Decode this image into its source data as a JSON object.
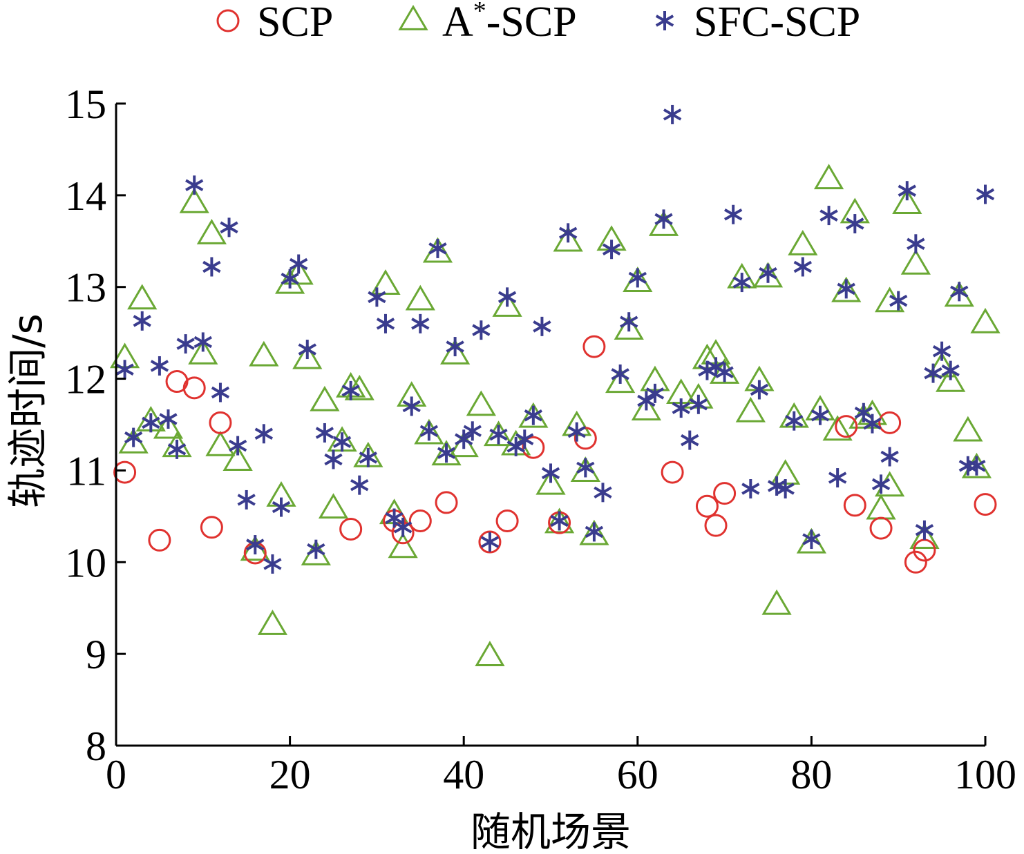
{
  "chart_data": {
    "type": "scatter",
    "title": "",
    "xlabel": "随机场景",
    "ylabel": "轨迹时间/s",
    "xlim": [
      0,
      100
    ],
    "ylim": [
      8,
      15
    ],
    "xticks": [
      "0",
      "20",
      "40",
      "60",
      "80",
      "100"
    ],
    "yticks": [
      "8",
      "9",
      "10",
      "11",
      "12",
      "13",
      "14",
      "15"
    ],
    "grid": false,
    "legend_position": "top",
    "series": [
      {
        "name": "SCP",
        "sup": "",
        "suffix": "",
        "marker": "circle",
        "color": "#e0322f",
        "points": [
          [
            1,
            10.98
          ],
          [
            5,
            10.24
          ],
          [
            7,
            11.97
          ],
          [
            9,
            11.9
          ],
          [
            11,
            10.38
          ],
          [
            12,
            11.52
          ],
          [
            16,
            10.1
          ],
          [
            27,
            10.36
          ],
          [
            32,
            10.45
          ],
          [
            33,
            10.32
          ],
          [
            35,
            10.45
          ],
          [
            38,
            10.65
          ],
          [
            43,
            10.22
          ],
          [
            45,
            10.45
          ],
          [
            48,
            11.25
          ],
          [
            51,
            10.43
          ],
          [
            54,
            11.35
          ],
          [
            55,
            12.35
          ],
          [
            64,
            10.98
          ],
          [
            68,
            10.61
          ],
          [
            69,
            10.4
          ],
          [
            70,
            10.75
          ],
          [
            84,
            11.48
          ],
          [
            85,
            10.62
          ],
          [
            88,
            10.37
          ],
          [
            89,
            11.52
          ],
          [
            92,
            10.0
          ],
          [
            93,
            10.13
          ],
          [
            100,
            10.63
          ]
        ]
      },
      {
        "name": "A",
        "sup": "*",
        "suffix": "-SCP",
        "marker": "triangle",
        "color": "#6aa834",
        "points": [
          [
            1,
            12.22
          ],
          [
            2,
            11.29
          ],
          [
            3,
            12.86
          ],
          [
            4,
            11.53
          ],
          [
            6,
            11.45
          ],
          [
            7,
            11.25
          ],
          [
            9,
            13.91
          ],
          [
            10,
            12.26
          ],
          [
            11,
            13.57
          ],
          [
            12,
            11.26
          ],
          [
            14,
            11.1
          ],
          [
            16,
            10.12
          ],
          [
            17,
            12.24
          ],
          [
            18,
            9.31
          ],
          [
            19,
            10.71
          ],
          [
            20,
            13.03
          ],
          [
            21,
            13.13
          ],
          [
            22,
            12.21
          ],
          [
            23,
            10.07
          ],
          [
            24,
            11.75
          ],
          [
            25,
            10.58
          ],
          [
            26,
            11.31
          ],
          [
            27,
            11.9
          ],
          [
            28,
            11.87
          ],
          [
            29,
            11.14
          ],
          [
            31,
            13.02
          ],
          [
            32,
            10.52
          ],
          [
            33,
            10.15
          ],
          [
            34,
            11.8
          ],
          [
            35,
            12.85
          ],
          [
            36,
            11.39
          ],
          [
            37,
            13.37
          ],
          [
            38,
            11.16
          ],
          [
            39,
            12.26
          ],
          [
            40,
            11.25
          ],
          [
            42,
            11.7
          ],
          [
            43,
            8.97
          ],
          [
            44,
            11.37
          ],
          [
            45,
            12.78
          ],
          [
            46,
            11.27
          ],
          [
            48,
            11.57
          ],
          [
            50,
            10.84
          ],
          [
            51,
            10.42
          ],
          [
            52,
            13.49
          ],
          [
            53,
            11.48
          ],
          [
            54,
            10.98
          ],
          [
            55,
            10.29
          ],
          [
            57,
            13.5
          ],
          [
            58,
            11.95
          ],
          [
            59,
            12.53
          ],
          [
            60,
            13.05
          ],
          [
            61,
            11.65
          ],
          [
            62,
            11.97
          ],
          [
            63,
            13.66
          ],
          [
            65,
            11.83
          ],
          [
            67,
            11.78
          ],
          [
            68,
            12.21
          ],
          [
            69,
            12.26
          ],
          [
            70,
            12.05
          ],
          [
            72,
            13.09
          ],
          [
            73,
            11.63
          ],
          [
            74,
            11.97
          ],
          [
            75,
            13.1
          ],
          [
            76,
            9.53
          ],
          [
            77,
            10.95
          ],
          [
            78,
            11.57
          ],
          [
            79,
            13.45
          ],
          [
            80,
            10.2
          ],
          [
            81,
            11.65
          ],
          [
            82,
            14.17
          ],
          [
            83,
            11.43
          ],
          [
            84,
            12.94
          ],
          [
            85,
            13.8
          ],
          [
            86,
            11.56
          ],
          [
            87,
            11.6
          ],
          [
            88,
            10.57
          ],
          [
            89,
            10.82
          ],
          [
            89,
            12.83
          ],
          [
            91,
            13.9
          ],
          [
            92,
            13.24
          ],
          [
            93,
            10.25
          ],
          [
            95,
            12.12
          ],
          [
            96,
            11.96
          ],
          [
            97,
            12.89
          ],
          [
            98,
            11.42
          ],
          [
            99,
            11.02
          ],
          [
            100,
            12.6
          ]
        ]
      },
      {
        "name": "SFC-SCP",
        "sup": "",
        "suffix": "",
        "marker": "asterisk",
        "color": "#3a3c8e",
        "points": [
          [
            1,
            12.1
          ],
          [
            2,
            11.36
          ],
          [
            3,
            12.63
          ],
          [
            4,
            11.52
          ],
          [
            5,
            12.14
          ],
          [
            6,
            11.56
          ],
          [
            7,
            11.23
          ],
          [
            8,
            12.38
          ],
          [
            9,
            14.11
          ],
          [
            10,
            12.4
          ],
          [
            11,
            13.22
          ],
          [
            12,
            11.85
          ],
          [
            13,
            13.65
          ],
          [
            14,
            11.27
          ],
          [
            15,
            10.68
          ],
          [
            16,
            10.19
          ],
          [
            17,
            11.4
          ],
          [
            18,
            9.98
          ],
          [
            19,
            10.6
          ],
          [
            20,
            13.09
          ],
          [
            21,
            13.25
          ],
          [
            22,
            12.32
          ],
          [
            23,
            10.14
          ],
          [
            24,
            11.41
          ],
          [
            25,
            11.12
          ],
          [
            26,
            11.31
          ],
          [
            27,
            11.87
          ],
          [
            28,
            10.84
          ],
          [
            29,
            11.14
          ],
          [
            30,
            12.89
          ],
          [
            31,
            12.6
          ],
          [
            32,
            10.48
          ],
          [
            33,
            10.38
          ],
          [
            34,
            11.7
          ],
          [
            35,
            12.6
          ],
          [
            36,
            11.43
          ],
          [
            37,
            13.42
          ],
          [
            38,
            11.19
          ],
          [
            39,
            12.35
          ],
          [
            40,
            11.34
          ],
          [
            41,
            11.43
          ],
          [
            42,
            12.53
          ],
          [
            43,
            10.22
          ],
          [
            44,
            11.39
          ],
          [
            45,
            12.89
          ],
          [
            46,
            11.26
          ],
          [
            47,
            11.34
          ],
          [
            48,
            11.6
          ],
          [
            49,
            12.57
          ],
          [
            50,
            10.97
          ],
          [
            51,
            10.45
          ],
          [
            52,
            13.59
          ],
          [
            53,
            11.42
          ],
          [
            54,
            11.03
          ],
          [
            55,
            10.33
          ],
          [
            56,
            10.76
          ],
          [
            57,
            13.41
          ],
          [
            58,
            12.05
          ],
          [
            59,
            12.62
          ],
          [
            60,
            13.1
          ],
          [
            61,
            11.76
          ],
          [
            62,
            11.84
          ],
          [
            63,
            13.74
          ],
          [
            64,
            14.88
          ],
          [
            65,
            11.68
          ],
          [
            66,
            11.33
          ],
          [
            67,
            11.72
          ],
          [
            68,
            12.09
          ],
          [
            69,
            12.13
          ],
          [
            70,
            12.07
          ],
          [
            71,
            13.79
          ],
          [
            72,
            13.05
          ],
          [
            73,
            10.8
          ],
          [
            74,
            11.88
          ],
          [
            75,
            13.15
          ],
          [
            76,
            10.83
          ],
          [
            77,
            10.8
          ],
          [
            78,
            11.54
          ],
          [
            79,
            13.22
          ],
          [
            80,
            10.25
          ],
          [
            81,
            11.6
          ],
          [
            82,
            13.78
          ],
          [
            83,
            10.92
          ],
          [
            84,
            12.98
          ],
          [
            85,
            13.69
          ],
          [
            86,
            11.63
          ],
          [
            87,
            11.51
          ],
          [
            88,
            10.85
          ],
          [
            89,
            11.15
          ],
          [
            90,
            12.85
          ],
          [
            91,
            14.05
          ],
          [
            92,
            13.47
          ],
          [
            93,
            10.35
          ],
          [
            94,
            12.06
          ],
          [
            95,
            12.3
          ],
          [
            96,
            12.09
          ],
          [
            97,
            12.95
          ],
          [
            98,
            11.05
          ],
          [
            99,
            11.05
          ],
          [
            100,
            14.01
          ]
        ]
      }
    ]
  }
}
